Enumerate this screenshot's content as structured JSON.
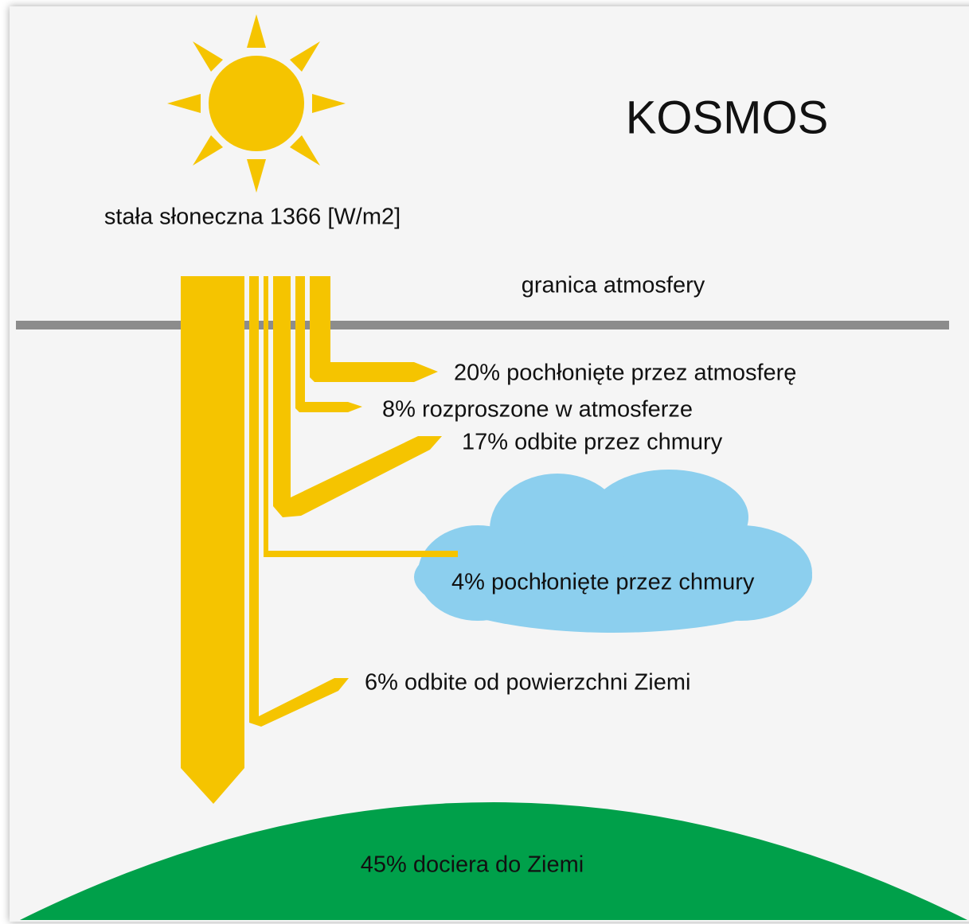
{
  "title": "KOSMOS",
  "sun": {
    "label": "stała słoneczna 1366 [W/m2]"
  },
  "boundary": {
    "label": "granica atmosfery"
  },
  "flows": [
    {
      "label": "20% pochłonięte przez atmosferę"
    },
    {
      "label": "8% rozproszone w atmosferze"
    },
    {
      "label": "17% odbite przez chmury"
    },
    {
      "label": "4% pochłonięte przez chmury"
    },
    {
      "label": "6% odbite od powierzchni Ziemi"
    }
  ],
  "ground": {
    "label": "45% dociera do Ziemi"
  }
}
